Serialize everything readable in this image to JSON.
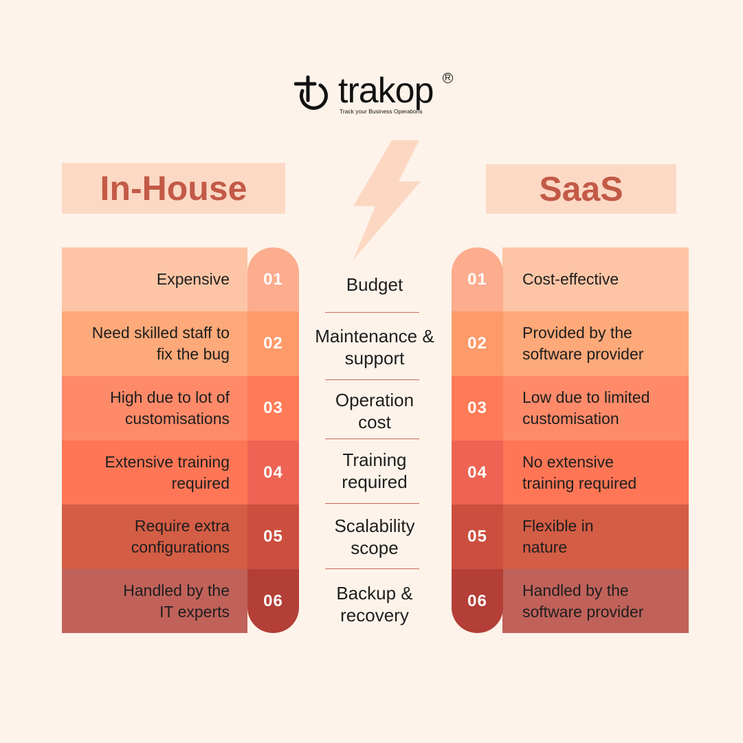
{
  "brand": {
    "name": "trakop",
    "registered": "R",
    "tagline": "Track your Business Operations"
  },
  "headings": {
    "left": "In-House",
    "right": "SaaS"
  },
  "rows": [
    {
      "num": "01",
      "criterion": "Budget",
      "inhouse": "Expensive",
      "saas": "Cost-effective"
    },
    {
      "num": "02",
      "criterion": "Maintenance & support",
      "inhouse": "Need skilled staff to fix the bug",
      "saas": "Provided by the software provider"
    },
    {
      "num": "03",
      "criterion": "Operation cost",
      "inhouse": "High due to lot of customisations",
      "saas": "Low due to limited customisation"
    },
    {
      "num": "04",
      "criterion": "Training required",
      "inhouse": "Extensive training required",
      "saas": "No extensive training required"
    },
    {
      "num": "05",
      "criterion": "Scalability scope",
      "inhouse": "Require extra configurations",
      "saas": "Flexible in nature"
    },
    {
      "num": "06",
      "criterion": "Backup & recovery",
      "inhouse": "Handled by the IT experts",
      "saas": "Handled by the software provider"
    }
  ],
  "colors": {
    "background": "#fdf3ea",
    "heading_bg": "#fcd9c5",
    "heading_text": "#c25a47",
    "row_bg": [
      "#fdc5a6",
      "#fea979",
      "#ff8a69",
      "#ff7656",
      "#d45d45",
      "#c0625a"
    ],
    "num_bg": [
      "#fdac8e",
      "#fe9a6a",
      "#ff7b57",
      "#ee6354",
      "#cb4e3e",
      "#b33f37"
    ],
    "bolt": "#fcd8c3"
  }
}
